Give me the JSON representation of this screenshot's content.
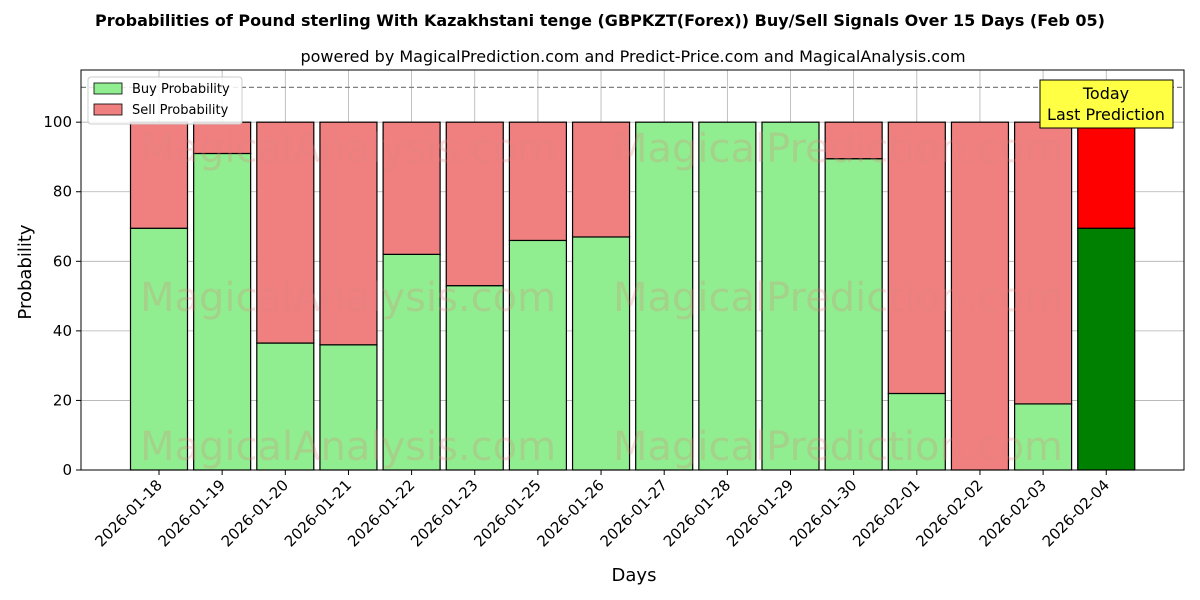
{
  "chart_data": {
    "type": "bar",
    "stacked": true,
    "title": "Probabilities of Pound sterling With Kazakhstani tenge (GBPKZT(Forex)) Buy/Sell Signals Over 15 Days (Feb 05)",
    "subtitle": "powered by MagicalPrediction.com and Predict-Price.com and MagicalAnalysis.com",
    "xlabel": "Days",
    "ylabel": "Probability",
    "ylim": [
      0,
      115
    ],
    "yticks": [
      0,
      20,
      40,
      60,
      80,
      100
    ],
    "grid": true,
    "legend_position": "top-left",
    "reference_line": 110,
    "categories": [
      "2026-01-18",
      "2026-01-19",
      "2026-01-20",
      "2026-01-21",
      "2026-01-22",
      "2026-01-23",
      "2026-01-25",
      "2026-01-26",
      "2026-01-27",
      "2026-01-28",
      "2026-01-29",
      "2026-01-30",
      "2026-02-01",
      "2026-02-02",
      "2026-02-03",
      "2026-02-04"
    ],
    "series": [
      {
        "name": "Buy Probability",
        "color": "#90ee90",
        "values": [
          69.5,
          91,
          36.5,
          36,
          62,
          53,
          66,
          67,
          100,
          100,
          100,
          89.5,
          22,
          0,
          19,
          69.5
        ]
      },
      {
        "name": "Sell Probability",
        "color": "#f08080",
        "values": [
          30.5,
          9,
          63.5,
          64,
          38,
          47,
          34,
          33,
          0,
          0,
          0,
          10.5,
          78,
          100,
          81,
          30.5
        ]
      }
    ],
    "highlight": {
      "index": 15,
      "buy_color": "#008000",
      "sell_color": "#ff0000"
    },
    "annotation": {
      "lines": [
        "Today",
        "Last Prediction"
      ],
      "color": "#ffff44"
    },
    "watermarks": [
      "MagicalAnalysis.com",
      "MagicalPrediction.com"
    ]
  }
}
